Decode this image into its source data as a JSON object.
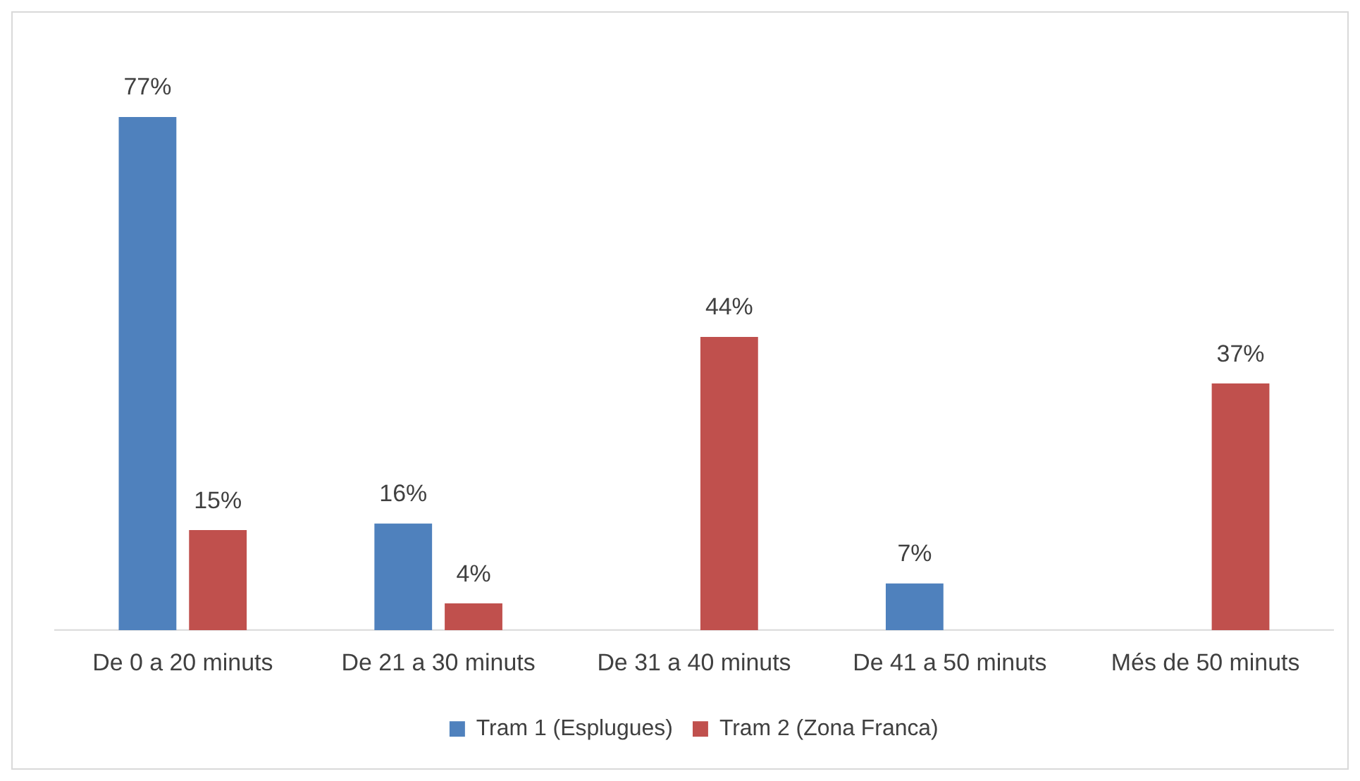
{
  "chart_data": {
    "type": "bar",
    "categories": [
      "De 0 a 20 minuts",
      "De 21 a 30 minuts",
      "De 31 a 40 minuts",
      "De 41 a 50 minuts",
      "Més de 50 minuts"
    ],
    "series": [
      {
        "name": "Tram 1 (Esplugues)",
        "color": "#4f81bd",
        "values": [
          77,
          16,
          null,
          7,
          null
        ],
        "value_labels": [
          "77%",
          "16%",
          null,
          "7%",
          null
        ]
      },
      {
        "name": "Tram 2 (Zona Franca)",
        "color": "#c0504d",
        "values": [
          15,
          4,
          44,
          null,
          37
        ],
        "value_labels": [
          "15%",
          "4%",
          "44%",
          null,
          "37%"
        ]
      }
    ],
    "legend": "bottom",
    "grid": false
  }
}
